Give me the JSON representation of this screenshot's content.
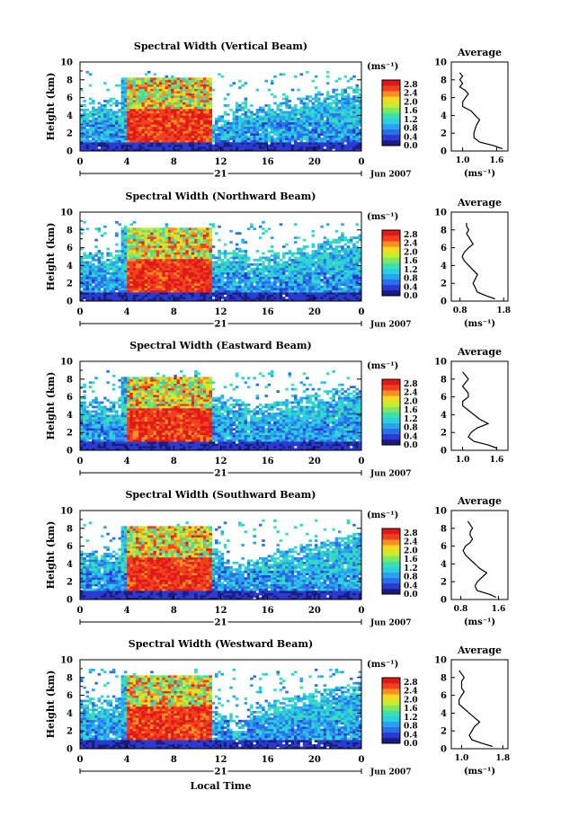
{
  "figure": {
    "xlabel": "Local Time",
    "date_label": "Jun 2007",
    "day_label": "21",
    "unit_label": "(ms⁻¹)",
    "colorbar_unit_label": "(ms⁻¹)",
    "colormap": [
      "#1a1a80",
      "#2a3ad0",
      "#2a6ee8",
      "#2aa2f0",
      "#2ad0e0",
      "#3ae0b0",
      "#80e860",
      "#c8ec30",
      "#f8d820",
      "#f89020",
      "#f04020",
      "#e01818"
    ],
    "colorbar_ticks": [
      "0.0",
      "0.4",
      "0.8",
      "1.2",
      "1.6",
      "2.0",
      "2.4",
      "2.8"
    ],
    "x_ticks": [
      "0",
      "4",
      "8",
      "12",
      "16",
      "20",
      "0"
    ],
    "height_ticks": [
      "0",
      "2",
      "4",
      "6",
      "8",
      "10"
    ],
    "ylabel": "Height (km)"
  },
  "chart_data": [
    {
      "type": "heatmap",
      "title": "Spectral Width (Vertical Beam)",
      "xlabel": "",
      "ylabel": "Height (km)",
      "xlim": [
        0,
        24
      ],
      "ylim": [
        0,
        10
      ],
      "clim": [
        0,
        3.0
      ],
      "profile": {
        "title": "Average",
        "xlabel": "(ms⁻¹)",
        "x_ticks": [
          "1.0",
          "1.6"
        ],
        "xlim": [
          0.8,
          1.8
        ],
        "ylim": [
          0,
          10
        ],
        "x": [
          1.7,
          1.55,
          1.3,
          1.2,
          1.2,
          1.22,
          1.25,
          1.3,
          1.22,
          1.15,
          1.0,
          1.0,
          1.05,
          1.1,
          1.05,
          0.95,
          1.0,
          0.95,
          1.0,
          0.95
        ],
        "y": [
          0.25,
          0.6,
          1.0,
          1.5,
          2.0,
          2.5,
          3.0,
          3.5,
          4.0,
          4.5,
          5.0,
          5.5,
          6.0,
          6.4,
          6.8,
          7.2,
          7.6,
          8.0,
          8.4,
          8.8
        ]
      }
    },
    {
      "type": "heatmap",
      "title": "Spectral Width (Northward Beam)",
      "xlabel": "",
      "ylabel": "Height (km)",
      "xlim": [
        0,
        24
      ],
      "ylim": [
        0,
        10
      ],
      "clim": [
        0,
        3.0
      ],
      "profile": {
        "title": "Average",
        "xlabel": "(ms⁻¹)",
        "x_ticks": [
          "0.8",
          "1.8"
        ],
        "xlim": [
          0.6,
          1.9
        ],
        "ylim": [
          0,
          10
        ],
        "x": [
          1.6,
          1.4,
          1.2,
          1.15,
          1.1,
          1.15,
          1.2,
          1.1,
          1.0,
          0.9,
          0.85,
          0.9,
          1.0,
          1.1,
          1.05,
          1.0,
          0.95,
          1.0,
          0.95,
          0.95
        ],
        "y": [
          0.25,
          0.6,
          1.0,
          1.5,
          2.0,
          2.5,
          3.0,
          3.5,
          4.0,
          4.5,
          5.0,
          5.5,
          6.0,
          6.4,
          6.8,
          7.2,
          7.6,
          8.0,
          8.4,
          8.8
        ]
      }
    },
    {
      "type": "heatmap",
      "title": "Spectral Width (Eastward Beam)",
      "xlabel": "",
      "ylabel": "Height (km)",
      "xlim": [
        0,
        24
      ],
      "ylim": [
        0,
        10
      ],
      "clim": [
        0,
        3.0
      ],
      "profile": {
        "title": "Average",
        "xlabel": "",
        "x_ticks": [
          "1.0",
          "1.6"
        ],
        "xlim": [
          0.8,
          1.8
        ],
        "ylim": [
          0,
          10
        ],
        "x": [
          1.6,
          1.45,
          1.2,
          1.1,
          1.15,
          1.25,
          1.45,
          1.3,
          1.2,
          1.1,
          1.0,
          1.0,
          1.1,
          1.1,
          1.05,
          1.0,
          1.05,
          1.1,
          1.05,
          1.0
        ],
        "y": [
          0.25,
          0.6,
          1.0,
          1.5,
          2.0,
          2.5,
          3.0,
          3.5,
          4.0,
          4.5,
          5.0,
          5.5,
          6.0,
          6.4,
          6.8,
          7.2,
          7.6,
          8.0,
          8.4,
          8.8
        ]
      }
    },
    {
      "type": "heatmap",
      "title": "Spectral Width (Southward Beam)",
      "xlabel": "",
      "ylabel": "Height (km)",
      "xlim": [
        0,
        24
      ],
      "ylim": [
        0,
        10
      ],
      "clim": [
        0,
        3.0
      ],
      "profile": {
        "title": "Average",
        "xlabel": "(ms⁻¹)",
        "x_ticks": [
          "0.8",
          "1.6"
        ],
        "xlim": [
          0.6,
          1.8
        ],
        "ylim": [
          0,
          10
        ],
        "x": [
          1.55,
          1.4,
          1.15,
          1.1,
          1.15,
          1.25,
          1.35,
          1.2,
          1.1,
          1.0,
          0.9,
          0.85,
          0.9,
          1.0,
          1.05,
          1.0,
          1.0,
          1.05,
          1.0,
          0.95
        ],
        "y": [
          0.25,
          0.6,
          1.0,
          1.5,
          2.0,
          2.5,
          3.0,
          3.5,
          4.0,
          4.5,
          5.0,
          5.5,
          6.0,
          6.4,
          6.8,
          7.2,
          7.6,
          8.0,
          8.4,
          8.8
        ]
      }
    },
    {
      "type": "heatmap",
      "title": "Spectral Width (Westward Beam)",
      "xlabel": "Local Time",
      "ylabel": "Height (km)",
      "xlim": [
        0,
        24
      ],
      "ylim": [
        0,
        10
      ],
      "clim": [
        0,
        3.0
      ],
      "profile": {
        "title": "Average",
        "xlabel": "(ms⁻¹)",
        "x_ticks": [
          "1.0",
          "1.8"
        ],
        "xlim": [
          0.8,
          1.9
        ],
        "ylim": [
          0,
          10
        ],
        "x": [
          1.6,
          1.4,
          1.2,
          1.15,
          1.2,
          1.25,
          1.35,
          1.25,
          1.15,
          1.05,
          0.95,
          0.95,
          1.0,
          1.05,
          1.0,
          1.0,
          1.0,
          1.05,
          1.0,
          0.95
        ],
        "y": [
          0.25,
          0.6,
          1.0,
          1.5,
          2.0,
          2.5,
          3.0,
          3.5,
          4.0,
          4.5,
          5.0,
          5.5,
          6.0,
          6.4,
          6.8,
          7.2,
          7.6,
          8.0,
          8.4,
          8.8
        ]
      }
    }
  ]
}
